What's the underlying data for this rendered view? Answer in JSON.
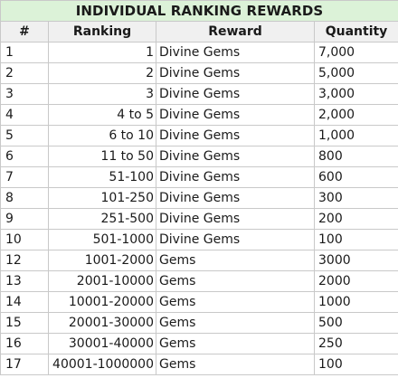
{
  "title": "INDIVIDUAL RANKING REWARDS",
  "columns": [
    "#",
    "Ranking",
    "Reward",
    "Quantity"
  ],
  "rows": [
    {
      "num": "1",
      "ranking": "1",
      "reward": "Divine Gems",
      "quantity": "7,000"
    },
    {
      "num": "2",
      "ranking": "2",
      "reward": "Divine Gems",
      "quantity": "5,000"
    },
    {
      "num": "3",
      "ranking": "3",
      "reward": "Divine Gems",
      "quantity": "3,000"
    },
    {
      "num": "4",
      "ranking": "4 to 5",
      "reward": "Divine Gems",
      "quantity": "2,000"
    },
    {
      "num": "5",
      "ranking": "6 to 10",
      "reward": "Divine Gems",
      "quantity": "1,000"
    },
    {
      "num": "6",
      "ranking": "11 to 50",
      "reward": "Divine Gems",
      "quantity": "800"
    },
    {
      "num": "7",
      "ranking": "51-100",
      "reward": "Divine Gems",
      "quantity": "600"
    },
    {
      "num": "8",
      "ranking": "101-250",
      "reward": "Divine Gems",
      "quantity": "300"
    },
    {
      "num": "9",
      "ranking": "251-500",
      "reward": "Divine Gems",
      "quantity": "200"
    },
    {
      "num": "10",
      "ranking": "501-1000",
      "reward": "Divine Gems",
      "quantity": "100"
    },
    {
      "num": "12",
      "ranking": "1001-2000",
      "reward": "Gems",
      "quantity": "3000"
    },
    {
      "num": "13",
      "ranking": "2001-10000",
      "reward": "Gems",
      "quantity": "2000"
    },
    {
      "num": "14",
      "ranking": "10001-20000",
      "reward": "Gems",
      "quantity": "1000"
    },
    {
      "num": "15",
      "ranking": "20001-30000",
      "reward": "Gems",
      "quantity": "500"
    },
    {
      "num": "16",
      "ranking": "30001-40000",
      "reward": "Gems",
      "quantity": "250"
    },
    {
      "num": "17",
      "ranking": "40001-1000000",
      "reward": "Gems",
      "quantity": "100"
    }
  ],
  "colors": {
    "title_bg": "#dcf2d8",
    "header_bg": "#f0f0f0",
    "grid": "#c9c9c9"
  }
}
